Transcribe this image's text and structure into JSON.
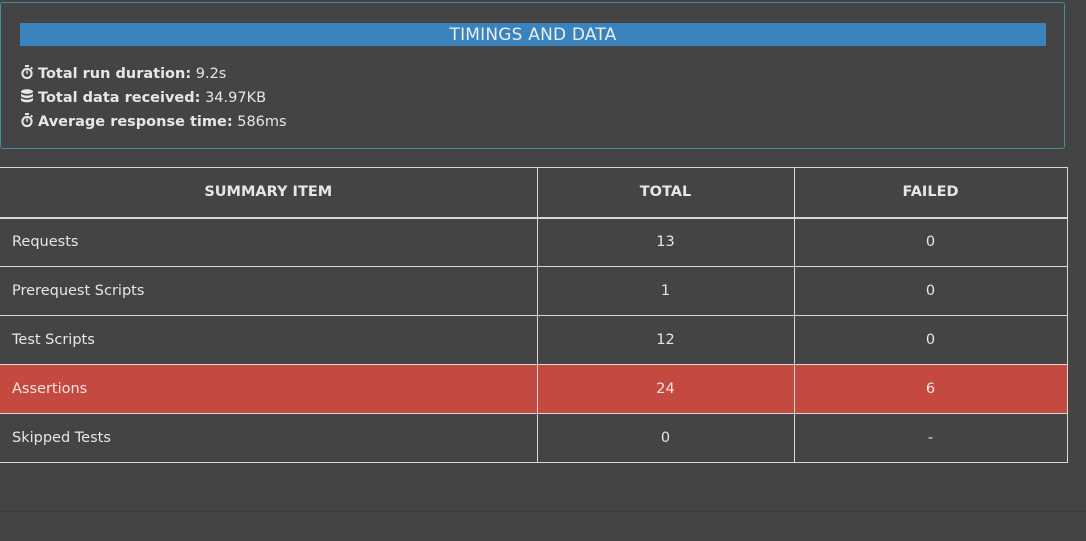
{
  "timings": {
    "title": "TIMINGS AND DATA",
    "rows": [
      {
        "icon": "stopwatch-icon",
        "label": "Total run duration:",
        "value": "9.2s"
      },
      {
        "icon": "database-icon",
        "label": "Total data received:",
        "value": "34.97KB"
      },
      {
        "icon": "stopwatch-icon",
        "label": "Average response time:",
        "value": "586ms"
      }
    ]
  },
  "summary": {
    "headers": [
      "SUMMARY ITEM",
      "TOTAL",
      "FAILED"
    ],
    "rows": [
      {
        "item": "Requests",
        "total": "13",
        "failed": "0"
      },
      {
        "item": "Prerequest Scripts",
        "total": "1",
        "failed": "0"
      },
      {
        "item": "Test Scripts",
        "total": "12",
        "failed": "0"
      },
      {
        "item": "Assertions",
        "total": "24",
        "failed": "6"
      },
      {
        "item": "Skipped Tests",
        "total": "0",
        "failed": "-"
      }
    ]
  },
  "colors": {
    "header_bar": "#3b83bd",
    "failed_row": "#c44a3f",
    "background": "#444444",
    "card_border": "#3d8f98"
  }
}
